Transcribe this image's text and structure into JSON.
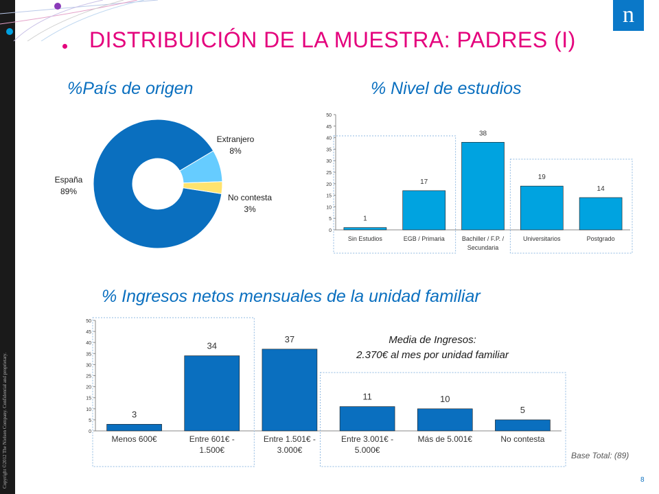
{
  "header": {
    "title": "DISTRIBUICIÓN DE LA MUESTRA: PADRES (I)",
    "logo_letter": "n",
    "copyright": "Copyright ©2012 The Nielsen Company. Confidential and proprietary.",
    "page_number": "8"
  },
  "colors": {
    "accent": "#e4007c",
    "brand_blue": "#0a6fbf",
    "bar_light": "#00a3e0",
    "bar_dark": "#0a6fbf",
    "pie_other": "#66ccff",
    "pie_nc": "#ffe36e"
  },
  "sections": {
    "pais": "%País de origen",
    "nivel": "% Nivel de estudios",
    "ingresos": "% Ingresos netos mensuales de la unidad familiar"
  },
  "annotation": {
    "line1": "Media de Ingresos:",
    "line2": "2.370€ al mes por unidad familiar"
  },
  "base_total": "Base Total: (89)",
  "chart_data": [
    {
      "type": "pie",
      "title": "%País de origen",
      "labels": [
        "España",
        "Extranjero",
        "No contesta"
      ],
      "values": [
        89,
        8,
        3
      ],
      "value_labels": [
        "89%",
        "8%",
        "3%"
      ]
    },
    {
      "type": "bar",
      "title": "% Nivel de estudios",
      "categories": [
        "Sin Estudios",
        "EGB / Primaria",
        "Bachiller / F.P. / Secundaria",
        "Universitarios",
        "Postgrado"
      ],
      "category_lines": [
        [
          "Sin Estudios"
        ],
        [
          "EGB / Primaria"
        ],
        [
          "Bachiller / F.P. /",
          "Secundaria"
        ],
        [
          "Universitarios"
        ],
        [
          "Postgrado"
        ]
      ],
      "values": [
        1,
        17,
        38,
        19,
        14
      ],
      "ylim": [
        0,
        50
      ],
      "yticks": [
        0,
        5,
        10,
        15,
        20,
        25,
        30,
        35,
        40,
        45,
        50
      ]
    },
    {
      "type": "bar",
      "title": "% Ingresos netos mensuales de la unidad familiar",
      "categories": [
        "Menos 600€",
        "Entre 601€ - 1.500€",
        "Entre 1.501€ - 3.000€",
        "Entre 3.001€ - 5.000€",
        "Más de 5.001€",
        "No contesta"
      ],
      "category_lines": [
        [
          "Menos 600€"
        ],
        [
          "Entre 601€ -",
          "1.500€"
        ],
        [
          "Entre 1.501€ -",
          "3.000€"
        ],
        [
          "Entre 3.001€ -",
          "5.000€"
        ],
        [
          "Más de 5.001€"
        ],
        [
          "No contesta"
        ]
      ],
      "values": [
        3,
        34,
        37,
        11,
        10,
        5
      ],
      "ylim": [
        0,
        50
      ],
      "yticks": [
        0,
        5,
        10,
        15,
        20,
        25,
        30,
        35,
        40,
        45,
        50
      ]
    }
  ]
}
